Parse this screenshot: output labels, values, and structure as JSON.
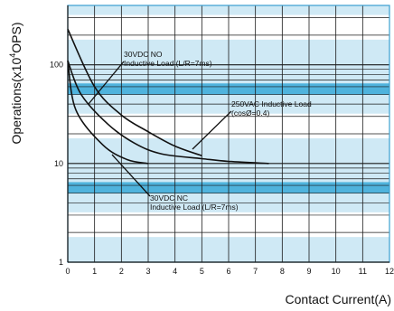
{
  "chart_data": {
    "type": "line",
    "title": "",
    "xlabel": "Contact Current(A)",
    "ylabel_main": "Operations(x10",
    "ylabel_exp": "4",
    "ylabel_tail": "OPS)",
    "x_scale": "linear",
    "y_scale": "log",
    "xlim": [
      0,
      12
    ],
    "ylim": [
      1,
      400
    ],
    "x_ticks": [
      "0",
      "1",
      "2",
      "3",
      "4",
      "5",
      "6",
      "7",
      "8",
      "9",
      "10",
      "11",
      "12"
    ],
    "y_ticks": [
      {
        "value": 1,
        "label": "1"
      },
      {
        "value": 10,
        "label": "10"
      },
      {
        "value": 100,
        "label": "100"
      }
    ],
    "grid": true,
    "band_colors": {
      "light": "#cfe9f5",
      "strong": "#4fb3dd",
      "border": "#3a9fd0",
      "line": "#1a1a1a"
    },
    "series": [
      {
        "id": "dc-no",
        "points": [
          [
            0,
            230
          ],
          [
            1,
            60
          ],
          [
            2,
            31
          ],
          [
            3,
            21
          ],
          [
            4,
            15
          ],
          [
            5,
            12
          ]
        ]
      },
      {
        "id": "ac",
        "points": [
          [
            0,
            110
          ],
          [
            0.5,
            50
          ],
          [
            1.5,
            25
          ],
          [
            2.5,
            16
          ],
          [
            3.5,
            12.5
          ],
          [
            5,
            11.2
          ],
          [
            6,
            10.5
          ],
          [
            7.5,
            10
          ]
        ]
      },
      {
        "id": "dc-nc",
        "points": [
          [
            0,
            110
          ],
          [
            0.3,
            35
          ],
          [
            1.3,
            15.5
          ],
          [
            2.2,
            11
          ],
          [
            3,
            10
          ]
        ]
      }
    ],
    "annotations": [
      {
        "id": "dc-no",
        "lines": [
          "30VDC NO",
          "Inductive Load (L/R=7ms)"
        ]
      },
      {
        "id": "ac",
        "lines": [
          "250VAC Inductive Load",
          "(cosØ=0.4)"
        ]
      },
      {
        "id": "dc-nc",
        "lines": [
          "30VDC NC",
          "Inductive Load (L/R=7ms)"
        ]
      }
    ]
  }
}
